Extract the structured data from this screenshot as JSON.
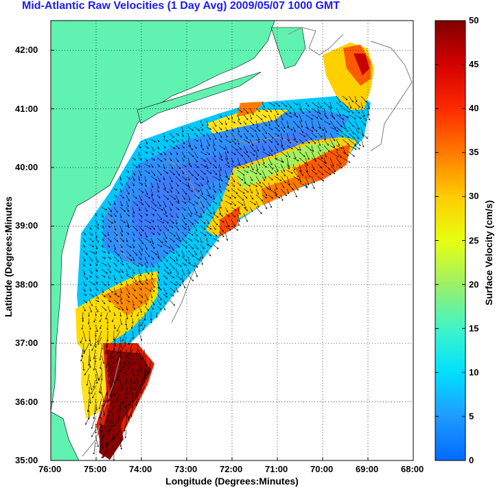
{
  "title": "Mid-Atlantic Raw Velocities (1 Day Avg) 2009/05/07 1000 GMT",
  "xlabel": "Longitude (Degrees:Minutes)",
  "ylabel": "Latitude (Degrees:Minutes",
  "colorbar_label": "Surface Velocity (cm/s)",
  "xticks": [
    "76:00",
    "75:00",
    "74:00",
    "73:00",
    "72:00",
    "71:00",
    "70:00",
    "69:00",
    "68:00"
  ],
  "yticks": [
    "42:00",
    "41:00",
    "40:00",
    "39:00",
    "38:00",
    "37:00",
    "36:00",
    "35:00"
  ],
  "colorbar_ticks": [
    "50",
    "45",
    "40",
    "35",
    "30",
    "25",
    "20",
    "15",
    "10",
    "5",
    "0"
  ],
  "colors": {
    "title": "#1a1aff",
    "land": "#5ff2b0",
    "ocean": "#ffffff",
    "bathymetry": "#909090",
    "arrows": "#000000"
  },
  "map": {
    "lon_range": [
      -76,
      -68
    ],
    "lat_range": [
      35,
      42.5
    ],
    "grid": true,
    "colorbar_range": [
      0,
      50
    ],
    "colormap": "jet"
  }
}
